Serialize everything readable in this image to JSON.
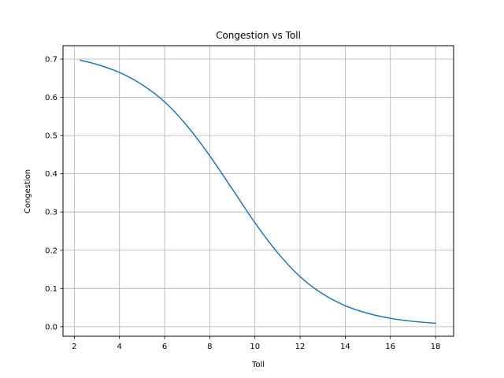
{
  "chart_data": {
    "type": "line",
    "title": "Congestion vs Toll",
    "xlabel": "Toll",
    "ylabel": "Congestion",
    "xlim": [
      1.5,
      18.8
    ],
    "ylim": [
      -0.025,
      0.735
    ],
    "xticks": [
      2,
      4,
      6,
      8,
      10,
      12,
      14,
      16,
      18
    ],
    "yticks": [
      0.0,
      0.1,
      0.2,
      0.3,
      0.4,
      0.5,
      0.6,
      0.7
    ],
    "xtick_labels": [
      "2",
      "4",
      "6",
      "8",
      "10",
      "12",
      "14",
      "16",
      "18"
    ],
    "ytick_labels": [
      "0.0",
      "0.1",
      "0.2",
      "0.3",
      "0.4",
      "0.5",
      "0.6",
      "0.7"
    ],
    "grid": true,
    "series": [
      {
        "color": "#1f77b4",
        "x": [
          2.27,
          3,
          4,
          5,
          6,
          7,
          8,
          9,
          10,
          11,
          12,
          13,
          14,
          15,
          16,
          17,
          18
        ],
        "y": [
          0.697,
          0.686,
          0.665,
          0.633,
          0.588,
          0.525,
          0.447,
          0.36,
          0.272,
          0.194,
          0.131,
          0.086,
          0.055,
          0.035,
          0.022,
          0.014,
          0.009
        ]
      }
    ]
  }
}
